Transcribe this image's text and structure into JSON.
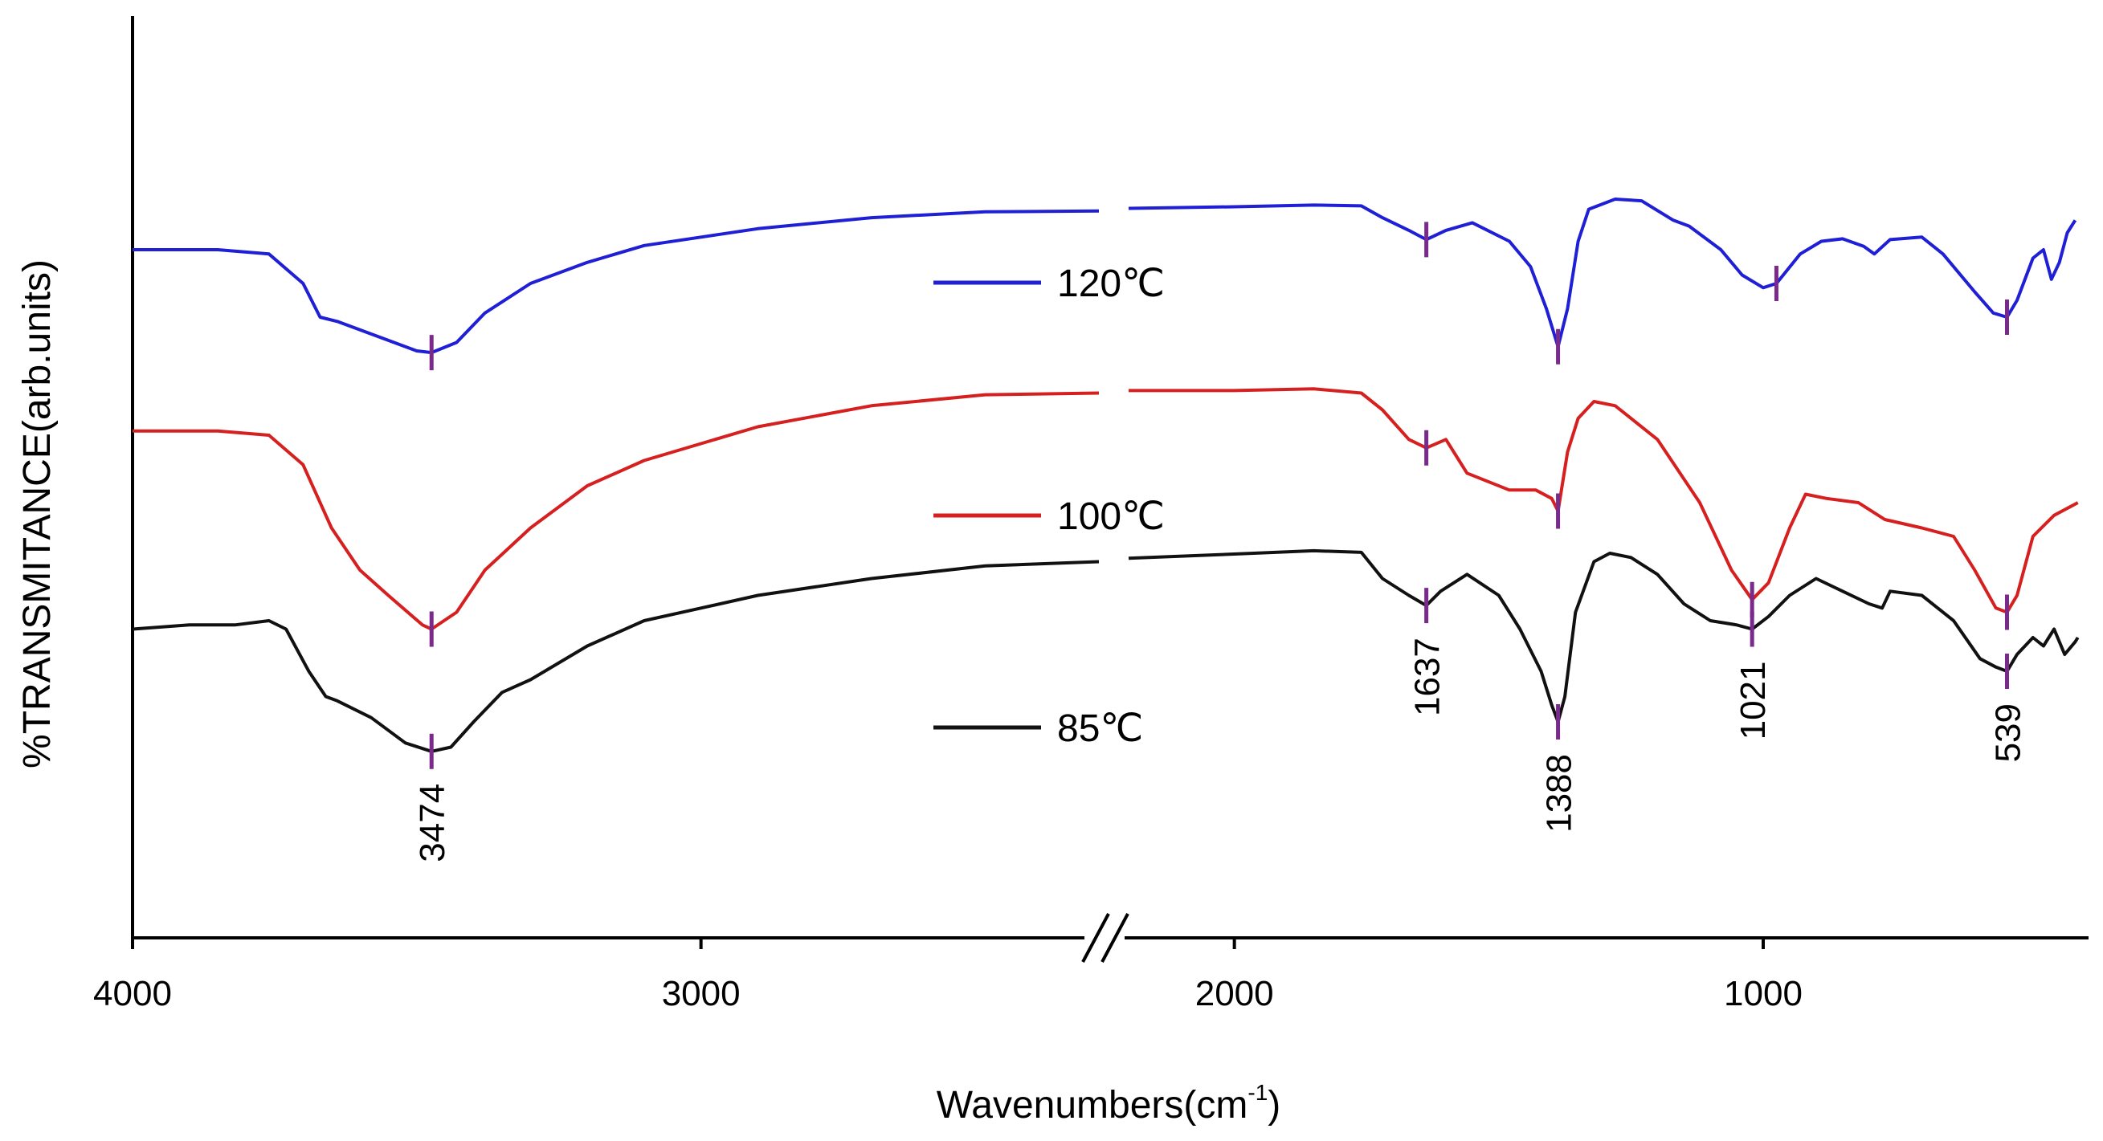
{
  "chart_data": {
    "type": "line",
    "title": "",
    "xlabel": "Wavenumbers(cm",
    "xlabel_sup": "-1",
    "xlabel_close": ")",
    "ylabel": "%TRANSMITANCE(arb.units)",
    "x_reversed": true,
    "x_axis_break": [
      2300,
      2200
    ],
    "segments": [
      {
        "xlim": [
          4000,
          2300
        ]
      },
      {
        "xlim": [
          2200,
          400
        ]
      }
    ],
    "ylim": [
      0,
      100
    ],
    "x_ticks": [
      4000,
      3000,
      2000,
      1000
    ],
    "x_tick_labels": [
      "4000",
      "3000",
      "2000",
      "1000"
    ],
    "colors": {
      "120": "#1f1fd6",
      "100": "#d62020",
      "85": "#111111",
      "marker": "#7a2a8a"
    },
    "series": [
      {
        "name": "120℃",
        "key": "120",
        "color": "#1f1fd6",
        "points": [
          [
            4000,
            78.0
          ],
          [
            3850,
            78.0
          ],
          [
            3760,
            77.5
          ],
          [
            3700,
            74.0
          ],
          [
            3670,
            70.0
          ],
          [
            3640,
            69.5
          ],
          [
            3560,
            67.5
          ],
          [
            3500,
            66.0
          ],
          [
            3474,
            65.8
          ],
          [
            3430,
            67.0
          ],
          [
            3380,
            70.5
          ],
          [
            3300,
            74.0
          ],
          [
            3200,
            76.5
          ],
          [
            3100,
            78.5
          ],
          [
            2900,
            80.5
          ],
          [
            2700,
            81.8
          ],
          [
            2500,
            82.5
          ],
          [
            2300,
            82.6
          ],
          [
            2200,
            82.9
          ],
          [
            2000,
            83.1
          ],
          [
            1850,
            83.3
          ],
          [
            1760,
            83.2
          ],
          [
            1720,
            81.8
          ],
          [
            1670,
            80.3
          ],
          [
            1637,
            79.2
          ],
          [
            1600,
            80.3
          ],
          [
            1550,
            81.2
          ],
          [
            1480,
            79.0
          ],
          [
            1440,
            76.0
          ],
          [
            1410,
            71.0
          ],
          [
            1388,
            66.5
          ],
          [
            1370,
            71.0
          ],
          [
            1350,
            79.0
          ],
          [
            1330,
            82.8
          ],
          [
            1280,
            84.0
          ],
          [
            1230,
            83.8
          ],
          [
            1170,
            81.5
          ],
          [
            1140,
            80.8
          ],
          [
            1080,
            78.0
          ],
          [
            1040,
            75.0
          ],
          [
            1000,
            73.5
          ],
          [
            975,
            74.0
          ],
          [
            930,
            77.5
          ],
          [
            890,
            79.0
          ],
          [
            850,
            79.3
          ],
          [
            810,
            78.4
          ],
          [
            790,
            77.5
          ],
          [
            760,
            79.2
          ],
          [
            700,
            79.5
          ],
          [
            660,
            77.5
          ],
          [
            600,
            73.0
          ],
          [
            565,
            70.5
          ],
          [
            539,
            70.0
          ],
          [
            520,
            72.0
          ],
          [
            490,
            77.0
          ],
          [
            470,
            78.0
          ],
          [
            455,
            74.5
          ],
          [
            440,
            76.5
          ],
          [
            425,
            80.0
          ],
          [
            410,
            81.5
          ]
        ]
      },
      {
        "name": "100℃",
        "key": "100",
        "color": "#d62020",
        "points": [
          [
            4000,
            56.5
          ],
          [
            3850,
            56.5
          ],
          [
            3760,
            56.0
          ],
          [
            3700,
            52.5
          ],
          [
            3650,
            45.0
          ],
          [
            3600,
            40.0
          ],
          [
            3550,
            37.0
          ],
          [
            3490,
            33.5
          ],
          [
            3474,
            33.0
          ],
          [
            3430,
            35.0
          ],
          [
            3380,
            40.0
          ],
          [
            3300,
            45.0
          ],
          [
            3200,
            50.0
          ],
          [
            3100,
            53.0
          ],
          [
            3000,
            55.0
          ],
          [
            2900,
            57.0
          ],
          [
            2700,
            59.5
          ],
          [
            2500,
            60.8
          ],
          [
            2300,
            61.0
          ],
          [
            2200,
            61.3
          ],
          [
            2000,
            61.3
          ],
          [
            1850,
            61.5
          ],
          [
            1760,
            61.0
          ],
          [
            1720,
            59.0
          ],
          [
            1670,
            55.5
          ],
          [
            1637,
            54.5
          ],
          [
            1600,
            55.5
          ],
          [
            1560,
            51.5
          ],
          [
            1480,
            49.5
          ],
          [
            1430,
            49.5
          ],
          [
            1400,
            48.5
          ],
          [
            1388,
            47.0
          ],
          [
            1370,
            54.0
          ],
          [
            1350,
            58.0
          ],
          [
            1320,
            60.0
          ],
          [
            1280,
            59.5
          ],
          [
            1200,
            55.5
          ],
          [
            1120,
            48.0
          ],
          [
            1060,
            40.0
          ],
          [
            1021,
            36.5
          ],
          [
            990,
            38.5
          ],
          [
            950,
            45.0
          ],
          [
            920,
            49.0
          ],
          [
            880,
            48.5
          ],
          [
            820,
            48.0
          ],
          [
            770,
            46.0
          ],
          [
            700,
            45.0
          ],
          [
            640,
            44.0
          ],
          [
            600,
            40.0
          ],
          [
            560,
            35.5
          ],
          [
            539,
            35.0
          ],
          [
            520,
            37.0
          ],
          [
            490,
            44.0
          ],
          [
            450,
            46.5
          ],
          [
            420,
            47.5
          ],
          [
            405,
            48.0
          ]
        ]
      },
      {
        "name": "85℃",
        "key": "85",
        "color": "#111111",
        "points": [
          [
            4000,
            33.0
          ],
          [
            3900,
            33.5
          ],
          [
            3820,
            33.5
          ],
          [
            3760,
            34.0
          ],
          [
            3730,
            33.0
          ],
          [
            3690,
            28.0
          ],
          [
            3660,
            25.0
          ],
          [
            3640,
            24.5
          ],
          [
            3580,
            22.5
          ],
          [
            3520,
            19.5
          ],
          [
            3474,
            18.5
          ],
          [
            3440,
            19.0
          ],
          [
            3400,
            22.0
          ],
          [
            3350,
            25.5
          ],
          [
            3300,
            27.0
          ],
          [
            3200,
            31.0
          ],
          [
            3100,
            34.0
          ],
          [
            3000,
            35.5
          ],
          [
            2900,
            37.0
          ],
          [
            2700,
            39.0
          ],
          [
            2500,
            40.5
          ],
          [
            2300,
            41.0
          ],
          [
            2200,
            41.4
          ],
          [
            2000,
            41.9
          ],
          [
            1850,
            42.3
          ],
          [
            1760,
            42.1
          ],
          [
            1720,
            39.0
          ],
          [
            1670,
            37.0
          ],
          [
            1637,
            35.8
          ],
          [
            1610,
            37.5
          ],
          [
            1560,
            39.5
          ],
          [
            1500,
            37.0
          ],
          [
            1460,
            33.0
          ],
          [
            1420,
            28.0
          ],
          [
            1400,
            24.0
          ],
          [
            1388,
            22.0
          ],
          [
            1375,
            25.0
          ],
          [
            1355,
            35.0
          ],
          [
            1320,
            41.0
          ],
          [
            1290,
            42.0
          ],
          [
            1250,
            41.5
          ],
          [
            1200,
            39.5
          ],
          [
            1150,
            36.0
          ],
          [
            1100,
            34.0
          ],
          [
            1050,
            33.5
          ],
          [
            1021,
            33.0
          ],
          [
            990,
            34.5
          ],
          [
            950,
            37.0
          ],
          [
            900,
            39.0
          ],
          [
            850,
            37.5
          ],
          [
            800,
            36.0
          ],
          [
            775,
            35.5
          ],
          [
            760,
            37.5
          ],
          [
            700,
            37.0
          ],
          [
            640,
            34.0
          ],
          [
            590,
            29.5
          ],
          [
            560,
            28.5
          ],
          [
            539,
            28.0
          ],
          [
            520,
            30.0
          ],
          [
            490,
            32.0
          ],
          [
            470,
            31.0
          ],
          [
            450,
            33.0
          ],
          [
            430,
            30.0
          ],
          [
            410,
            31.5
          ],
          [
            405,
            32.0
          ]
        ]
      }
    ],
    "peak_markers": [
      {
        "series": "120",
        "x": 3474
      },
      {
        "series": "120",
        "x": 1637
      },
      {
        "series": "120",
        "x": 1388
      },
      {
        "series": "120",
        "x": 975
      },
      {
        "series": "120",
        "x": 539
      },
      {
        "series": "100",
        "x": 3474
      },
      {
        "series": "100",
        "x": 1637
      },
      {
        "series": "100",
        "x": 1388
      },
      {
        "series": "100",
        "x": 1021
      },
      {
        "series": "100",
        "x": 539
      },
      {
        "series": "85",
        "x": 3474
      },
      {
        "series": "85",
        "x": 1637
      },
      {
        "series": "85",
        "x": 1388
      },
      {
        "series": "85",
        "x": 1021
      },
      {
        "series": "85",
        "x": 539
      }
    ],
    "peak_labels": [
      {
        "text": "3474",
        "x": 3474,
        "y": 18.5
      },
      {
        "text": "1637",
        "x": 1637,
        "y": 35.8
      },
      {
        "text": "1388",
        "x": 1388,
        "y": 22.0
      },
      {
        "text": "1021",
        "x": 1021,
        "y": 33.0
      },
      {
        "text": "539",
        "x": 539,
        "y": 28.0
      }
    ],
    "legend": [
      {
        "label": "120℃",
        "key": "120",
        "color": "#1f1fd6"
      },
      {
        "label": "100℃",
        "key": "100",
        "color": "#d62020"
      },
      {
        "label": "85℃",
        "key": "85",
        "color": "#111111"
      }
    ]
  }
}
